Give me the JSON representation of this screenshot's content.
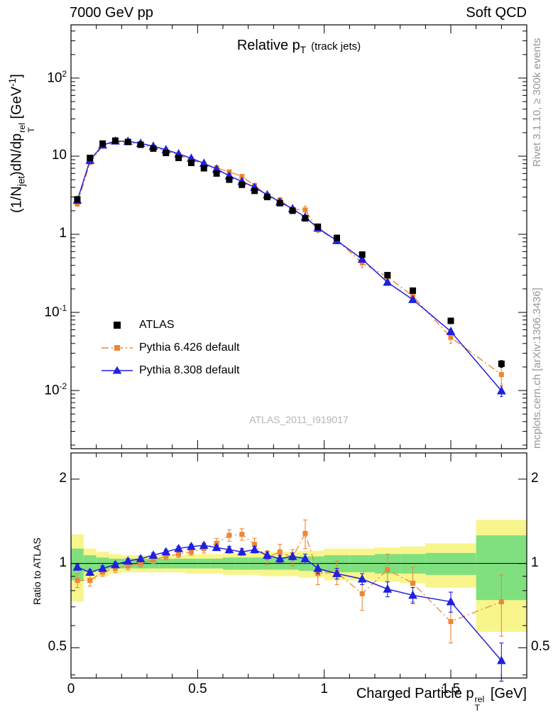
{
  "header": {
    "left": "7000 GeV pp",
    "right": "Soft QCD"
  },
  "side_notes": {
    "top": "Rivet 3.1.10, ≥ 300k events",
    "bottom": "mcplots.cern.ch [arXiv:1306.3436]"
  },
  "watermark": "ATLAS_2011_I919017",
  "labels": {
    "title": {
      "pre": "Relative p",
      "sub": "T",
      "post": "(track jets)"
    },
    "y_main": {
      "p1": "(1/N",
      "sub1": "jet",
      "p2": ")dN/dp",
      "sup": "rel",
      "sub": "T",
      "p3": " [GeV",
      "sup2": "-1",
      "p4": "]"
    },
    "x": {
      "pre": "Charged Particle p",
      "sup": "rel",
      "sub": "T",
      "post": " [GeV]"
    },
    "ratio_y": "Ratio to ATLAS"
  },
  "legend": {
    "items": [
      {
        "label": "ATLAS"
      },
      {
        "label": "Pythia 6.426 default"
      },
      {
        "label": "Pythia 8.308 default"
      }
    ]
  },
  "colors": {
    "atlas": "#000000",
    "pythia6": "#ee8633",
    "pythia8": "#2020dd",
    "band_green": "#80e080",
    "band_yellow": "#f8f58c",
    "frame": "#000000"
  },
  "chart_data": {
    "type": "line",
    "title": "Relative pT (track jets)",
    "xlabel": "Charged Particle pT^rel [GeV]",
    "ylabel": "(1/Njet) dN/dpT^rel [GeV^-1]",
    "ratio_label": "Ratio to ATLAS",
    "x_range": [
      0,
      1.8
    ],
    "y_range_main": [
      0.0018,
      480
    ],
    "y_scale_main": "log",
    "ratio_range": [
      0.39,
      2.48
    ],
    "ratio_scale": "log",
    "x_ticks": [
      0,
      0.5,
      1,
      1.5
    ],
    "y_ticks_main": [
      100,
      10,
      1,
      0.1,
      0.01
    ],
    "ratio_ticks": [
      2,
      1,
      0.5
    ],
    "bin_edges": [
      0,
      0.05,
      0.1,
      0.15,
      0.2,
      0.25,
      0.3,
      0.35,
      0.4,
      0.45,
      0.5,
      0.55,
      0.6,
      0.65,
      0.7,
      0.75,
      0.8,
      0.85,
      0.9,
      0.95,
      1.0,
      1.1,
      1.2,
      1.3,
      1.4,
      1.6,
      1.8
    ],
    "x": [
      0.025,
      0.075,
      0.125,
      0.175,
      0.225,
      0.275,
      0.325,
      0.375,
      0.425,
      0.475,
      0.525,
      0.575,
      0.625,
      0.675,
      0.725,
      0.775,
      0.825,
      0.875,
      0.925,
      0.975,
      1.05,
      1.15,
      1.25,
      1.35,
      1.5,
      1.7
    ],
    "series": [
      {
        "name": "ATLAS",
        "marker": "square",
        "color": "#000000",
        "line": "none",
        "values": [
          2.8,
          9.5,
          14.5,
          15.8,
          15.2,
          14.0,
          12.5,
          11.0,
          9.5,
          8.2,
          7.0,
          6.0,
          5.0,
          4.3,
          3.6,
          3.0,
          2.5,
          2.0,
          1.6,
          1.25,
          0.9,
          0.55,
          0.3,
          0.19,
          0.078,
          0.022
        ],
        "rel_err": [
          0.05,
          0.04,
          0.03,
          0.03,
          0.03,
          0.03,
          0.03,
          0.03,
          0.03,
          0.03,
          0.03,
          0.03,
          0.03,
          0.04,
          0.04,
          0.04,
          0.04,
          0.05,
          0.05,
          0.05,
          0.05,
          0.06,
          0.06,
          0.07,
          0.08,
          0.1
        ]
      },
      {
        "name": "Pythia 6.426 default",
        "marker": "square",
        "color": "#ee8633",
        "line": "dashdot",
        "values": [
          2.44,
          8.27,
          13.5,
          15.2,
          14.9,
          14.0,
          12.9,
          11.7,
          10.3,
          9.0,
          7.9,
          7.1,
          6.3,
          5.5,
          4.2,
          3.15,
          2.75,
          2.1,
          2.05,
          1.15,
          0.84,
          0.43,
          0.285,
          0.162,
          0.048,
          0.016
        ],
        "ratio": [
          0.87,
          0.87,
          0.93,
          0.96,
          0.98,
          1.0,
          1.03,
          1.06,
          1.08,
          1.1,
          1.13,
          1.18,
          1.26,
          1.27,
          1.17,
          1.05,
          1.1,
          1.05,
          1.28,
          0.92,
          0.93,
          0.78,
          0.95,
          0.85,
          0.62,
          0.73
        ],
        "ratio_err": [
          0.05,
          0.04,
          0.03,
          0.03,
          0.03,
          0.03,
          0.03,
          0.03,
          0.03,
          0.03,
          0.04,
          0.05,
          0.06,
          0.06,
          0.06,
          0.06,
          0.07,
          0.07,
          0.15,
          0.08,
          0.09,
          0.1,
          0.13,
          0.12,
          0.1,
          0.18
        ]
      },
      {
        "name": "Pythia 8.308 default",
        "marker": "triangle",
        "color": "#2020dd",
        "line": "solid",
        "values": [
          2.72,
          8.84,
          13.9,
          15.6,
          15.5,
          14.6,
          13.4,
          12.1,
          10.7,
          9.4,
          8.1,
          6.85,
          5.6,
          4.75,
          4.0,
          3.2,
          2.6,
          2.12,
          1.66,
          1.2,
          0.83,
          0.48,
          0.243,
          0.146,
          0.057,
          0.0099
        ],
        "ratio": [
          0.97,
          0.93,
          0.96,
          0.99,
          1.02,
          1.04,
          1.07,
          1.1,
          1.13,
          1.15,
          1.16,
          1.14,
          1.12,
          1.1,
          1.12,
          1.07,
          1.04,
          1.06,
          1.04,
          0.96,
          0.92,
          0.88,
          0.81,
          0.77,
          0.73,
          0.45
        ],
        "ratio_err": [
          0.02,
          0.02,
          0.02,
          0.02,
          0.02,
          0.02,
          0.02,
          0.02,
          0.02,
          0.02,
          0.02,
          0.02,
          0.03,
          0.03,
          0.03,
          0.03,
          0.03,
          0.03,
          0.04,
          0.04,
          0.04,
          0.04,
          0.05,
          0.05,
          0.06,
          0.07
        ]
      }
    ],
    "bands": {
      "reference": 1,
      "green_color": "#80e080",
      "yellow_color": "#f8f58c",
      "green_halfwidth": [
        0.13,
        0.07,
        0.05,
        0.04,
        0.04,
        0.04,
        0.04,
        0.04,
        0.04,
        0.04,
        0.04,
        0.04,
        0.05,
        0.05,
        0.05,
        0.05,
        0.05,
        0.05,
        0.06,
        0.06,
        0.07,
        0.07,
        0.08,
        0.08,
        0.09,
        0.26
      ],
      "yellow_halfwidth": [
        0.27,
        0.13,
        0.1,
        0.08,
        0.07,
        0.07,
        0.07,
        0.07,
        0.07,
        0.08,
        0.08,
        0.08,
        0.09,
        0.09,
        0.09,
        0.1,
        0.1,
        0.1,
        0.11,
        0.11,
        0.13,
        0.13,
        0.14,
        0.15,
        0.18,
        0.43
      ]
    },
    "legend_position": "inside-left-lower",
    "grid": false
  }
}
